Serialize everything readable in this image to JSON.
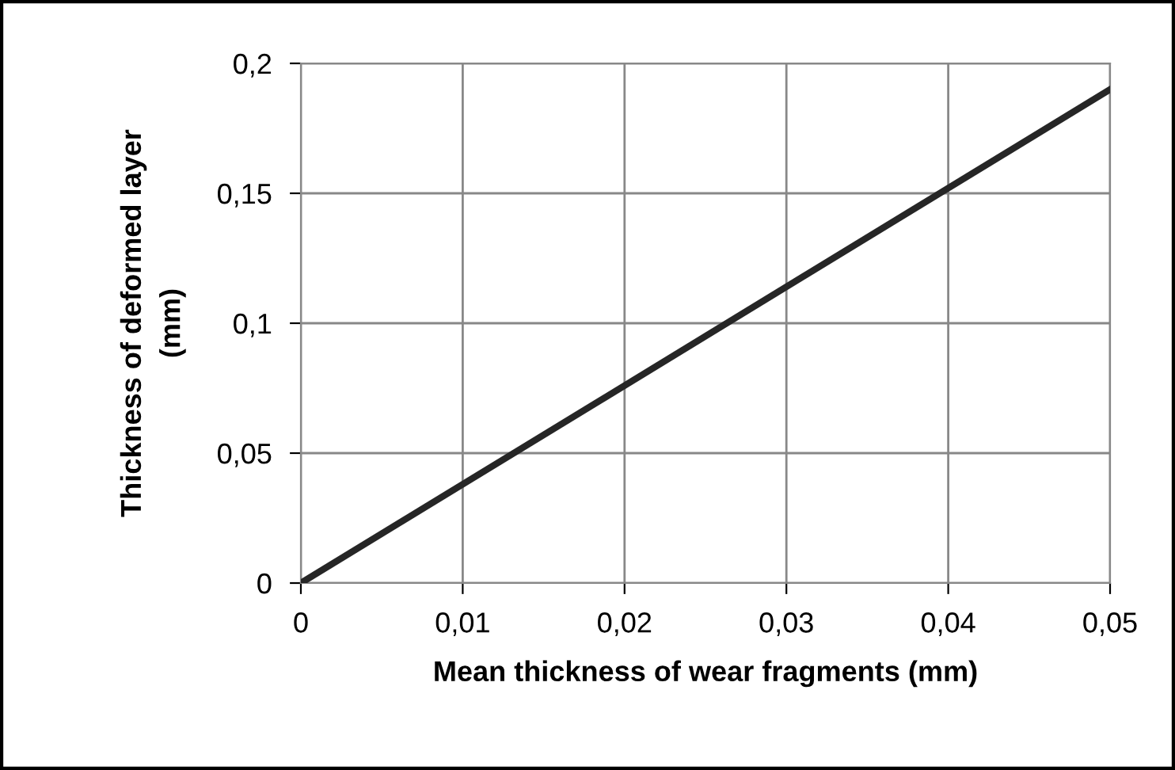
{
  "chart_data": {
    "type": "line",
    "xlabel": "Mean thickness of wear fragments (mm)",
    "ylabel": "Thickness of deformed layer\n(mm)",
    "x": [
      0,
      0.05
    ],
    "series": [
      {
        "color": "#262626",
        "values": [
          0,
          0.19
        ]
      }
    ],
    "xlim": [
      0,
      0.05
    ],
    "ylim": [
      0,
      0.2
    ],
    "xticks": [
      0,
      {
        "value": 0.01,
        "label": "0,01"
      },
      {
        "value": 0.02,
        "label": "0,02"
      },
      {
        "value": 0.03,
        "label": "0,03"
      },
      {
        "value": 0.04,
        "label": "0,04"
      },
      {
        "value": 0.05,
        "label": "0,05"
      }
    ],
    "yticks": [
      0,
      {
        "value": 0.05,
        "label": "0,05"
      },
      {
        "value": 0.1,
        "label": "0,1"
      },
      {
        "value": 0.15,
        "label": "0,15"
      },
      {
        "value": 0.2,
        "label": "0,2"
      }
    ],
    "grid": true,
    "marker": "none",
    "line_style": "solid"
  }
}
